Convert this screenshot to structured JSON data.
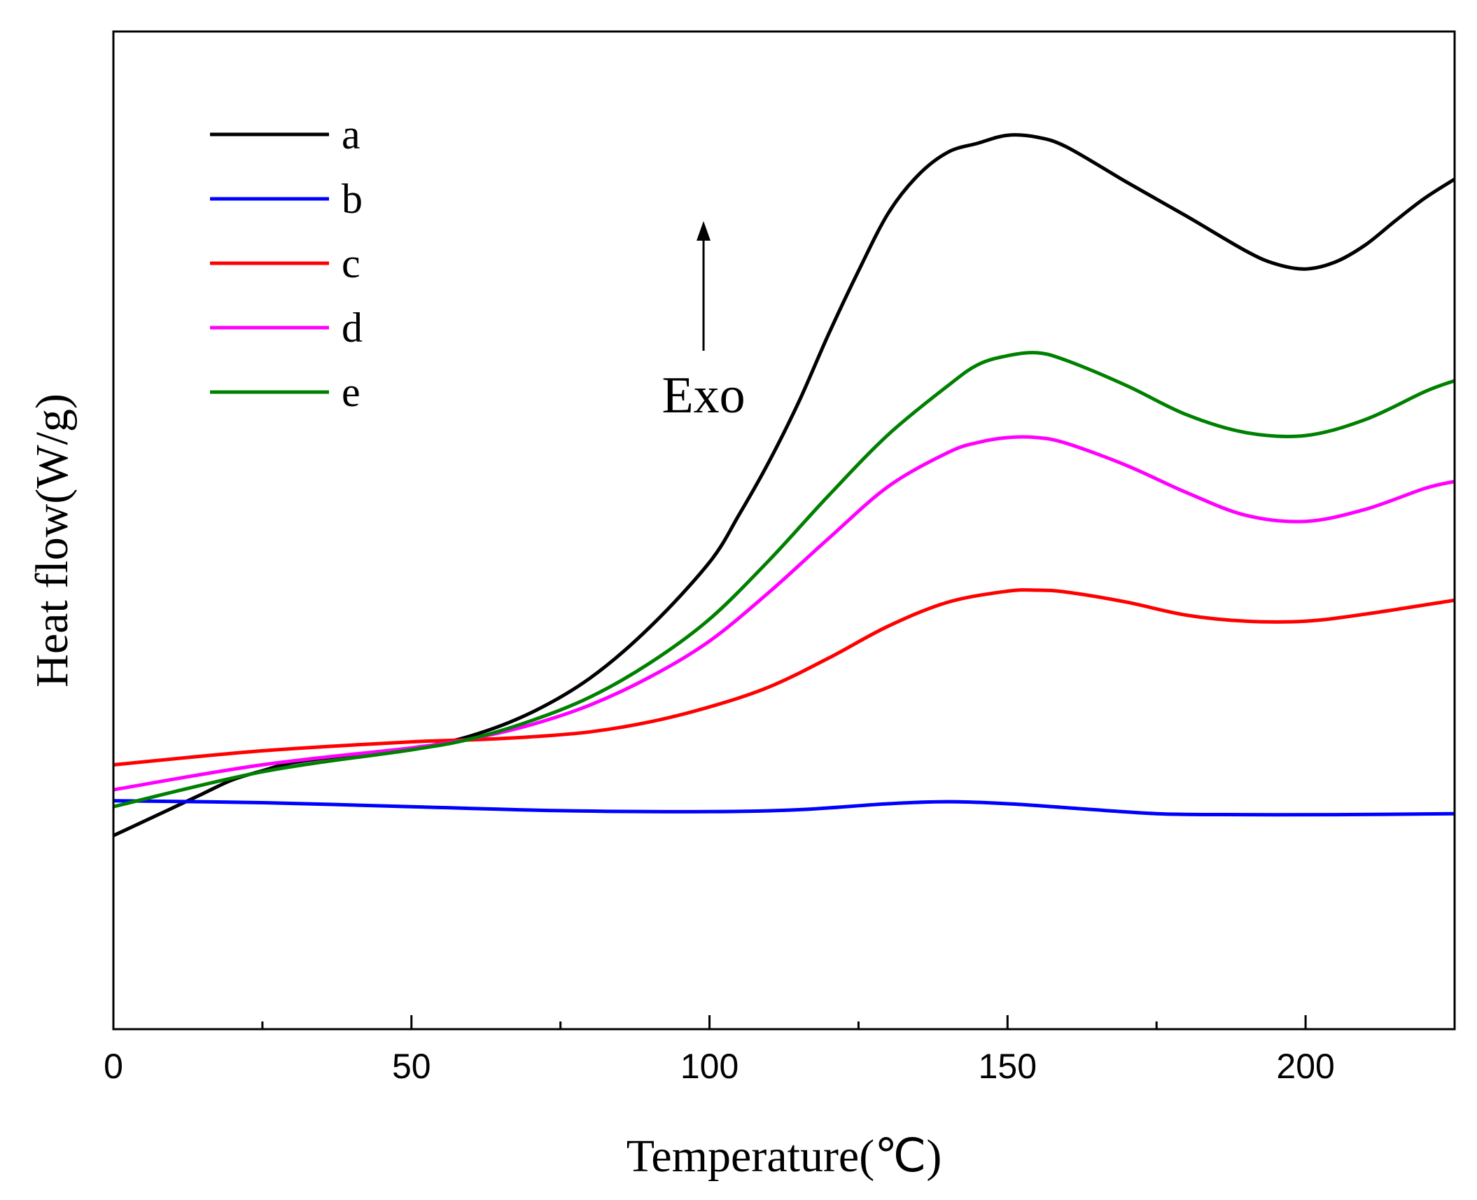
{
  "chart_data": {
    "type": "line",
    "title": "",
    "xlabel": "Temperature(℃)",
    "ylabel": "Heat flow(W/g)",
    "xlim": [
      0,
      225
    ],
    "ylim": [
      0,
      100
    ],
    "y_ticks_shown": false,
    "grid": false,
    "legend_position": "top-left",
    "x_major_ticks": [
      0,
      50,
      100,
      150,
      200
    ],
    "x_tick_labels": [
      "0",
      "50",
      "100",
      "150",
      "200"
    ],
    "x_minor_ticks": [
      25,
      75,
      125,
      175,
      225
    ],
    "series": [
      {
        "name": "a",
        "color": "#000000",
        "x": [
          0,
          5,
          10,
          15,
          20,
          25,
          30,
          40,
          50,
          60,
          70,
          80,
          90,
          100,
          105,
          110,
          115,
          120,
          125,
          130,
          135,
          140,
          145,
          150,
          155,
          160,
          170,
          180,
          190,
          195,
          200,
          205,
          210,
          215,
          220,
          225
        ],
        "y": [
          19.4,
          20.8,
          22.2,
          23.6,
          25.0,
          25.9,
          26.7,
          27.5,
          28.1,
          29.4,
          31.7,
          35.2,
          40.3,
          46.8,
          51.6,
          56.9,
          62.9,
          69.7,
          76.0,
          81.8,
          85.6,
          87.9,
          88.8,
          89.6,
          89.4,
          88.4,
          84.9,
          81.5,
          78.0,
          76.7,
          76.2,
          76.9,
          78.6,
          81.0,
          83.3,
          85.2
        ]
      },
      {
        "name": "b",
        "color": "#0000ff",
        "x": [
          0,
          25,
          50,
          75,
          100,
          115,
          130,
          140,
          150,
          160,
          175,
          190,
          205,
          225
        ],
        "y": [
          22.9,
          22.7,
          22.3,
          21.9,
          21.8,
          22.0,
          22.6,
          22.8,
          22.6,
          22.2,
          21.6,
          21.5,
          21.5,
          21.6
        ]
      },
      {
        "name": "c",
        "color": "#ff0000",
        "x": [
          0,
          25,
          50,
          60,
          70,
          80,
          90,
          100,
          110,
          120,
          130,
          140,
          150,
          155,
          160,
          170,
          180,
          190,
          200,
          210,
          225
        ],
        "y": [
          26.5,
          27.9,
          28.8,
          29.0,
          29.3,
          29.8,
          30.8,
          32.3,
          34.3,
          37.2,
          40.4,
          42.8,
          43.9,
          44.0,
          43.8,
          42.8,
          41.5,
          40.9,
          40.9,
          41.6,
          43.0
        ]
      },
      {
        "name": "d",
        "color": "#ff00ff",
        "x": [
          0,
          25,
          50,
          60,
          70,
          80,
          90,
          100,
          110,
          120,
          130,
          140,
          145,
          150,
          155,
          160,
          170,
          180,
          190,
          200,
          210,
          220,
          225
        ],
        "y": [
          24.0,
          26.5,
          28.2,
          29.1,
          30.5,
          32.5,
          35.3,
          38.9,
          43.8,
          49.2,
          54.4,
          57.8,
          58.8,
          59.3,
          59.3,
          58.7,
          56.5,
          53.8,
          51.5,
          50.9,
          52.1,
          54.2,
          54.9
        ]
      },
      {
        "name": "e",
        "color": "#008000",
        "x": [
          0,
          25,
          50,
          60,
          70,
          80,
          90,
          100,
          110,
          120,
          130,
          140,
          145,
          150,
          155,
          160,
          170,
          180,
          190,
          200,
          210,
          220,
          225
        ],
        "y": [
          22.3,
          25.8,
          28.0,
          29.1,
          30.9,
          33.3,
          36.7,
          41.1,
          47.0,
          53.5,
          59.6,
          64.5,
          66.6,
          67.5,
          67.8,
          67.0,
          64.5,
          61.6,
          59.8,
          59.5,
          61.1,
          63.9,
          65.0
        ]
      }
    ],
    "annotations": [
      {
        "text": "Exo",
        "arrow": "up",
        "x": 99,
        "y_from": 68,
        "y_to": 81
      }
    ]
  }
}
